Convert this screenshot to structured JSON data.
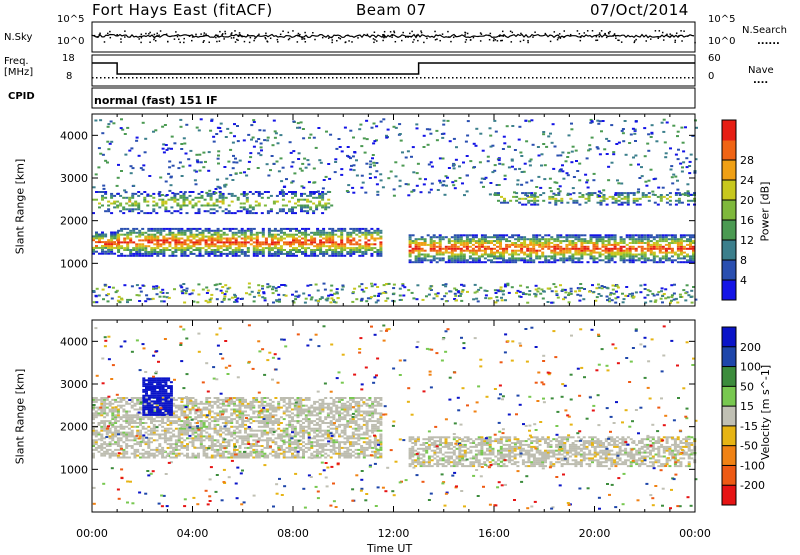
{
  "header": {
    "title": "Fort Hays East (fitACF)",
    "beam": "Beam 07",
    "date": "07/Oct/2014"
  },
  "summary_panels": {
    "nsky_label": "N.Sky",
    "nsearch_label": "N.Search",
    "noise_ticks": [
      "10^5",
      "10^0"
    ],
    "freq_label": "Freq.",
    "freq_unit": "[MHz]",
    "freq_ticks": [
      "18",
      "8"
    ],
    "nave_label": "Nave",
    "nave_ticks": [
      "60",
      "0"
    ],
    "cpid_label": "CPID",
    "cpid_text": "normal (fast) 151 IF"
  },
  "legend_marks": {
    "nsearch": "......",
    "nave": "...."
  },
  "colors": {
    "power_scale": [
      "#1414e6",
      "#2a4fb0",
      "#3c7f8c",
      "#4b9a52",
      "#7fb83c",
      "#c8c81e",
      "#f0a014",
      "#f06414",
      "#e61e14"
    ],
    "velocity_scale": [
      "#0a14c8",
      "#1e46aa",
      "#3c8c3c",
      "#78c850",
      "#c0c0b4",
      "#e6b414",
      "#f08214",
      "#ee5a14",
      "#e61414"
    ],
    "ground_scatter": "#bdbdb0"
  },
  "chart_data": [
    {
      "type": "heatmap",
      "panel": "power",
      "xlabel": "Time UT",
      "ylabel": "Slant Range [km]",
      "xlim": [
        0,
        24
      ],
      "ylim": [
        0,
        4500
      ],
      "y_ticks": [
        1000,
        2000,
        3000,
        4000
      ],
      "x_tick_labels": [
        "00:00",
        "04:00",
        "08:00",
        "12:00",
        "16:00",
        "20:00",
        "00:00"
      ],
      "colorbar": {
        "label": "Power [dB]",
        "ticks": [
          "4",
          "8",
          "12",
          "16",
          "20",
          "24",
          "28"
        ]
      },
      "scatter_bands": [
        {
          "t_start": 0.0,
          "t_end": 1.0,
          "range_start": 1250,
          "range_end": 1750
        },
        {
          "t_start": 1.0,
          "t_end": 11.5,
          "range_start": 1200,
          "range_end": 1850
        },
        {
          "t_start": 12.6,
          "t_end": 24.0,
          "range_start": 1050,
          "range_end": 1700
        },
        {
          "t_start": 0.0,
          "t_end": 9.5,
          "range_start": 2200,
          "range_end": 2700
        },
        {
          "t_start": 16.0,
          "t_end": 24.0,
          "range_start": 2400,
          "range_end": 2700
        }
      ]
    },
    {
      "type": "heatmap",
      "panel": "velocity",
      "xlabel": "Time UT",
      "ylabel": "Slant Range [km]",
      "xlim": [
        0,
        24
      ],
      "ylim": [
        0,
        4500
      ],
      "y_ticks": [
        1000,
        2000,
        3000,
        4000
      ],
      "x_tick_labels": [
        "00:00",
        "04:00",
        "08:00",
        "12:00",
        "16:00",
        "20:00",
        "00:00"
      ],
      "colorbar": {
        "label": "Velocity [m s^-1]",
        "ticks": [
          "200",
          "100",
          "50",
          "15",
          "-15",
          "-50",
          "-100",
          "-200"
        ]
      },
      "scatter_bands": [
        {
          "t_start": 0.0,
          "t_end": 11.5,
          "range_start": 1300,
          "range_end": 2700,
          "kind": "ground"
        },
        {
          "t_start": 12.6,
          "t_end": 24.0,
          "range_start": 1100,
          "range_end": 1800,
          "kind": "ground"
        },
        {
          "t_start": 2.0,
          "t_end": 3.2,
          "range_start": 2300,
          "range_end": 3200,
          "kind": "ionospheric"
        }
      ]
    }
  ]
}
